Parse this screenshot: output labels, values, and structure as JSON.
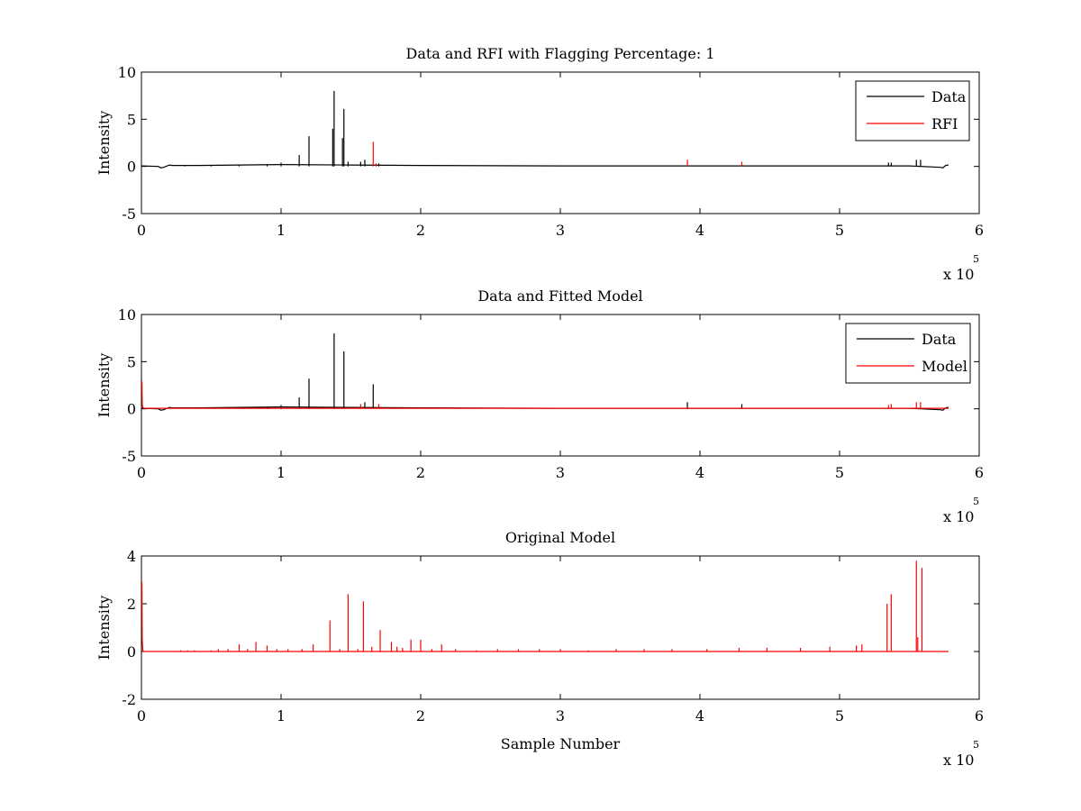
{
  "chart_data": [
    {
      "type": "line",
      "title": "Data and RFI with Flagging Percentage: 1",
      "xlabel": "",
      "ylabel": "Intensity",
      "xlim": [
        0,
        6
      ],
      "ylim": [
        -5,
        10
      ],
      "xticks": [
        "0",
        "1",
        "2",
        "3",
        "4",
        "5",
        "6"
      ],
      "yticks": [
        "10",
        "5",
        "0",
        "-5"
      ],
      "x_exponent": {
        "base": "x 10",
        "power": "5"
      },
      "legend": {
        "placement": "top-right",
        "entries": [
          {
            "label": "Data",
            "color": "#000000"
          },
          {
            "label": "RFI",
            "color": "#ff0000"
          }
        ]
      },
      "series": [
        {
          "name": "Data",
          "color": "#000000",
          "baseline": {
            "x": [
              0,
              0.12,
              0.14,
              0.16,
              0.2,
              0.22,
              0.4,
              1.0,
              1.5,
              2.0,
              3.0,
              5.0,
              5.5,
              5.72,
              5.74,
              5.76,
              5.78
            ],
            "y": [
              0.05,
              0.0,
              -0.15,
              -0.1,
              0.15,
              0.1,
              0.1,
              0.2,
              0.15,
              0.1,
              0.05,
              0.05,
              0.05,
              -0.1,
              -0.15,
              0.1,
              0.15
            ]
          },
          "spikes": [
            {
              "x": 0.31,
              "y": 0.1
            },
            {
              "x": 0.5,
              "y": 0.12
            },
            {
              "x": 0.7,
              "y": 0.15
            },
            {
              "x": 0.9,
              "y": 0.2
            },
            {
              "x": 1.0,
              "y": 0.4
            },
            {
              "x": 1.13,
              "y": 1.2
            },
            {
              "x": 1.2,
              "y": 3.2
            },
            {
              "x": 1.37,
              "y": 4.0
            },
            {
              "x": 1.38,
              "y": 8.0
            },
            {
              "x": 1.44,
              "y": 3.0
            },
            {
              "x": 1.45,
              "y": 6.1
            },
            {
              "x": 1.48,
              "y": 0.5
            },
            {
              "x": 1.57,
              "y": 0.5
            },
            {
              "x": 1.6,
              "y": 0.7
            },
            {
              "x": 1.7,
              "y": 0.3
            },
            {
              "x": 5.35,
              "y": 0.4
            },
            {
              "x": 5.37,
              "y": 0.4
            },
            {
              "x": 5.55,
              "y": 0.7
            },
            {
              "x": 5.58,
              "y": 0.7
            }
          ]
        },
        {
          "name": "RFI",
          "color": "#ff0000",
          "spikes": [
            {
              "x": 1.66,
              "y": 2.6
            },
            {
              "x": 1.68,
              "y": 0.3
            },
            {
              "x": 3.91,
              "y": 0.7
            },
            {
              "x": 4.3,
              "y": 0.5
            }
          ]
        }
      ]
    },
    {
      "type": "line",
      "title": "Data and Fitted Model",
      "xlabel": "",
      "ylabel": "Intensity",
      "xlim": [
        0,
        6
      ],
      "ylim": [
        -5,
        10
      ],
      "xticks": [
        "0",
        "1",
        "2",
        "3",
        "4",
        "5",
        "6"
      ],
      "yticks": [
        "10",
        "5",
        "0",
        "-5"
      ],
      "x_exponent": {
        "base": "x 10",
        "power": "5"
      },
      "legend": {
        "placement": "top-right",
        "entries": [
          {
            "label": "Data",
            "color": "#000000"
          },
          {
            "label": "Model",
            "color": "#ff0000"
          }
        ]
      },
      "series": [
        {
          "name": "Data",
          "color": "#000000",
          "baseline": {
            "x": [
              0,
              0.12,
              0.14,
              0.16,
              0.2,
              0.22,
              0.4,
              1.0,
              1.5,
              2.0,
              3.0,
              5.0,
              5.5,
              5.72,
              5.74,
              5.76,
              5.78
            ],
            "y": [
              0.05,
              0.0,
              -0.15,
              -0.1,
              0.15,
              0.1,
              0.1,
              0.2,
              0.15,
              0.1,
              0.05,
              0.05,
              0.05,
              -0.1,
              -0.15,
              0.1,
              0.15
            ]
          },
          "spikes": [
            {
              "x": 0.9,
              "y": 0.2
            },
            {
              "x": 1.0,
              "y": 0.4
            },
            {
              "x": 1.13,
              "y": 1.2
            },
            {
              "x": 1.2,
              "y": 3.2
            },
            {
              "x": 1.38,
              "y": 8.0
            },
            {
              "x": 1.45,
              "y": 6.1
            },
            {
              "x": 1.6,
              "y": 0.7
            },
            {
              "x": 1.66,
              "y": 2.6
            },
            {
              "x": 3.91,
              "y": 0.7
            },
            {
              "x": 4.3,
              "y": 0.5
            }
          ]
        },
        {
          "name": "Model",
          "color": "#ff0000",
          "baseline": {
            "x": [
              0,
              0.002,
              0.004,
              0.006,
              0.01,
              0.02,
              5.78
            ],
            "y": [
              3.0,
              2.9,
              2.8,
              0.5,
              0.1,
              0.05,
              0.05
            ]
          },
          "spikes": [
            {
              "x": 1.57,
              "y": 0.5
            },
            {
              "x": 1.7,
              "y": 0.5
            },
            {
              "x": 5.35,
              "y": 0.4
            },
            {
              "x": 5.37,
              "y": 0.5
            },
            {
              "x": 5.55,
              "y": 0.7
            },
            {
              "x": 5.58,
              "y": 0.7
            }
          ]
        }
      ]
    },
    {
      "type": "line",
      "title": "Original Model",
      "xlabel": "Sample Number",
      "ylabel": "Intensity",
      "xlim": [
        0,
        6
      ],
      "ylim": [
        -2,
        4
      ],
      "xticks": [
        "0",
        "1",
        "2",
        "3",
        "4",
        "5",
        "6"
      ],
      "yticks": [
        "4",
        "2",
        "0",
        "-2"
      ],
      "x_exponent": {
        "base": "x 10",
        "power": "5"
      },
      "series": [
        {
          "name": "",
          "color": "#ff0000",
          "baseline": {
            "x": [
              0,
              0.002,
              0.004,
              0.006,
              0.01,
              0.02,
              5.78
            ],
            "y": [
              3.0,
              2.9,
              2.8,
              0.5,
              0.02,
              0.0,
              0.0
            ]
          },
          "spikes": [
            {
              "x": 0.28,
              "y": 0.05
            },
            {
              "x": 0.33,
              "y": 0.05
            },
            {
              "x": 0.38,
              "y": 0.05
            },
            {
              "x": 0.5,
              "y": 0.05
            },
            {
              "x": 0.55,
              "y": 0.1
            },
            {
              "x": 0.62,
              "y": 0.1
            },
            {
              "x": 0.7,
              "y": 0.3
            },
            {
              "x": 0.76,
              "y": 0.1
            },
            {
              "x": 0.82,
              "y": 0.4
            },
            {
              "x": 0.9,
              "y": 0.25
            },
            {
              "x": 0.97,
              "y": 0.1
            },
            {
              "x": 1.05,
              "y": 0.1
            },
            {
              "x": 1.15,
              "y": 0.1
            },
            {
              "x": 1.23,
              "y": 0.3
            },
            {
              "x": 1.35,
              "y": 1.3
            },
            {
              "x": 1.42,
              "y": 0.1
            },
            {
              "x": 1.48,
              "y": 2.4
            },
            {
              "x": 1.55,
              "y": 0.1
            },
            {
              "x": 1.59,
              "y": 2.1
            },
            {
              "x": 1.65,
              "y": 0.2
            },
            {
              "x": 1.71,
              "y": 0.9
            },
            {
              "x": 1.79,
              "y": 0.4
            },
            {
              "x": 1.83,
              "y": 0.2
            },
            {
              "x": 1.87,
              "y": 0.15
            },
            {
              "x": 1.93,
              "y": 0.5
            },
            {
              "x": 2.0,
              "y": 0.5
            },
            {
              "x": 2.08,
              "y": 0.1
            },
            {
              "x": 2.15,
              "y": 0.3
            },
            {
              "x": 2.25,
              "y": 0.1
            },
            {
              "x": 2.4,
              "y": 0.05
            },
            {
              "x": 2.55,
              "y": 0.1
            },
            {
              "x": 2.7,
              "y": 0.1
            },
            {
              "x": 2.85,
              "y": 0.1
            },
            {
              "x": 3.0,
              "y": 0.1
            },
            {
              "x": 3.2,
              "y": 0.05
            },
            {
              "x": 3.4,
              "y": 0.1
            },
            {
              "x": 3.6,
              "y": 0.1
            },
            {
              "x": 3.8,
              "y": 0.1
            },
            {
              "x": 4.05,
              "y": 0.1
            },
            {
              "x": 4.28,
              "y": 0.15
            },
            {
              "x": 4.48,
              "y": 0.15
            },
            {
              "x": 4.72,
              "y": 0.15
            },
            {
              "x": 4.93,
              "y": 0.2
            },
            {
              "x": 5.12,
              "y": 0.25
            },
            {
              "x": 5.16,
              "y": 0.3
            },
            {
              "x": 5.34,
              "y": 2.0
            },
            {
              "x": 5.37,
              "y": 2.4
            },
            {
              "x": 5.55,
              "y": 3.8
            },
            {
              "x": 5.56,
              "y": 0.6
            },
            {
              "x": 5.59,
              "y": 3.5
            }
          ]
        }
      ]
    }
  ]
}
